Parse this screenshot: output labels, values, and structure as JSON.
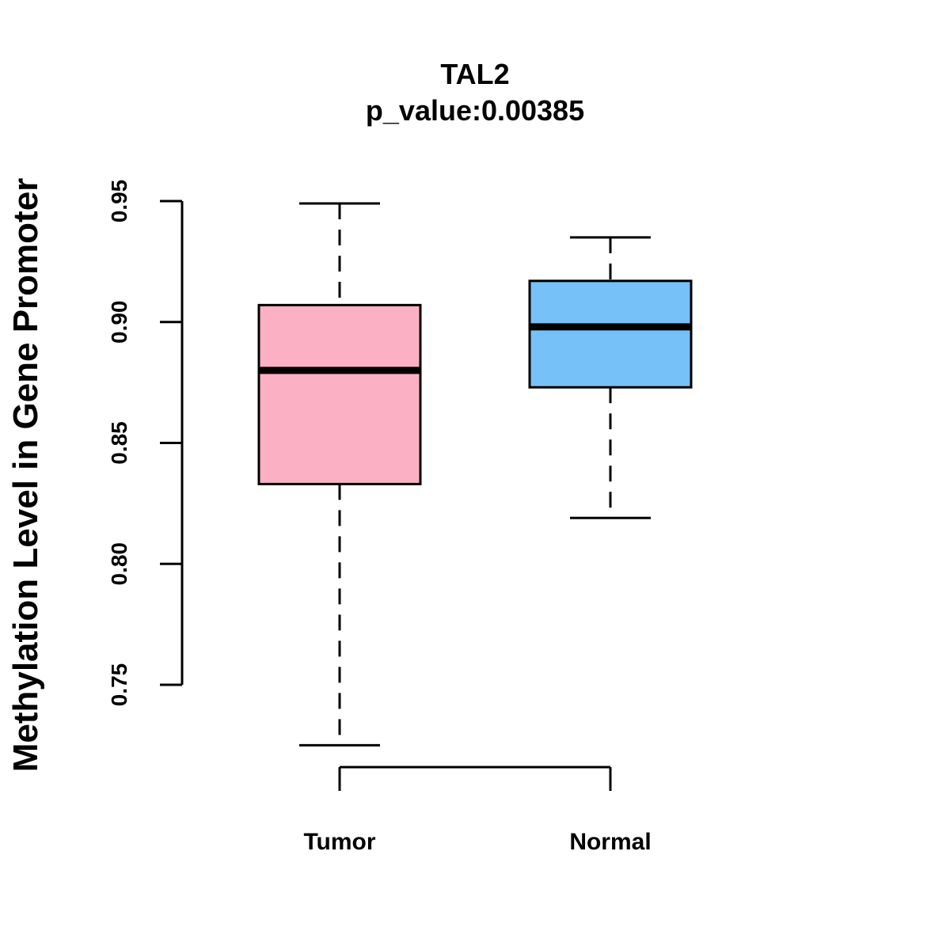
{
  "chart_data": {
    "type": "boxplot",
    "title": "TAL2",
    "subtitle": "p_value:0.00385",
    "xlabel": "",
    "ylabel": "Methylation Level in Gene Promoter",
    "ylim": [
      0.75,
      0.95
    ],
    "yticks": [
      0.75,
      0.8,
      0.85,
      0.9,
      0.95
    ],
    "ytick_labels": [
      "0.75",
      "0.80",
      "0.85",
      "0.90",
      "0.95"
    ],
    "grid": false,
    "categories": [
      "Tumor",
      "Normal"
    ],
    "series": [
      {
        "name": "Tumor",
        "whisker_low": 0.725,
        "q1": 0.833,
        "median": 0.88,
        "q3": 0.907,
        "whisker_high": 0.949,
        "color": "#FBB1C3"
      },
      {
        "name": "Normal",
        "whisker_low": 0.819,
        "q1": 0.873,
        "median": 0.898,
        "q3": 0.917,
        "whisker_high": 0.935,
        "color": "#76C1F7"
      }
    ]
  }
}
